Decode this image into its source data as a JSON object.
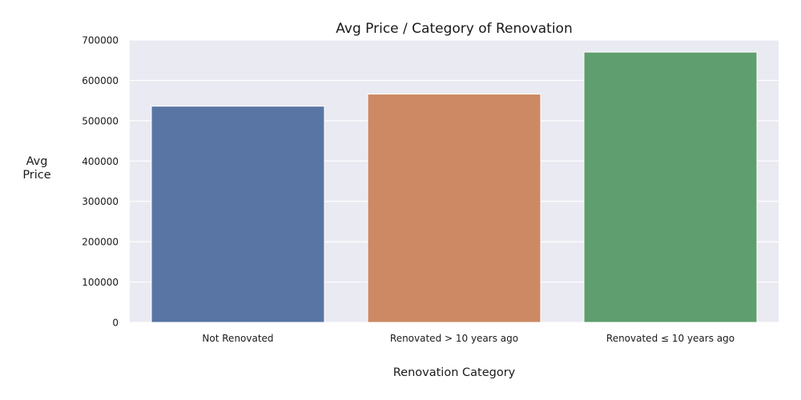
{
  "chart_data": {
    "type": "bar",
    "title": "Avg Price / Category of Renovation",
    "xlabel": "Renovation Category",
    "ylabel": [
      "Avg",
      "Price"
    ],
    "categories": [
      "Not Renovated",
      "Renovated > 10 years ago",
      "Renovated ≤ 10 years ago"
    ],
    "values": [
      536000,
      566000,
      670000
    ],
    "colors": [
      "#5875a4",
      "#cc8963",
      "#5f9e6e"
    ],
    "ylim": [
      0,
      700000
    ],
    "yticks": [
      0,
      100000,
      200000,
      300000,
      400000,
      500000,
      600000,
      700000
    ],
    "ytick_labels": [
      "0",
      "100000",
      "200000",
      "300000",
      "400000",
      "500000",
      "600000",
      "700000"
    ],
    "grid": true,
    "plot_background": "#eaeaf2",
    "grid_color": "#ffffff"
  }
}
